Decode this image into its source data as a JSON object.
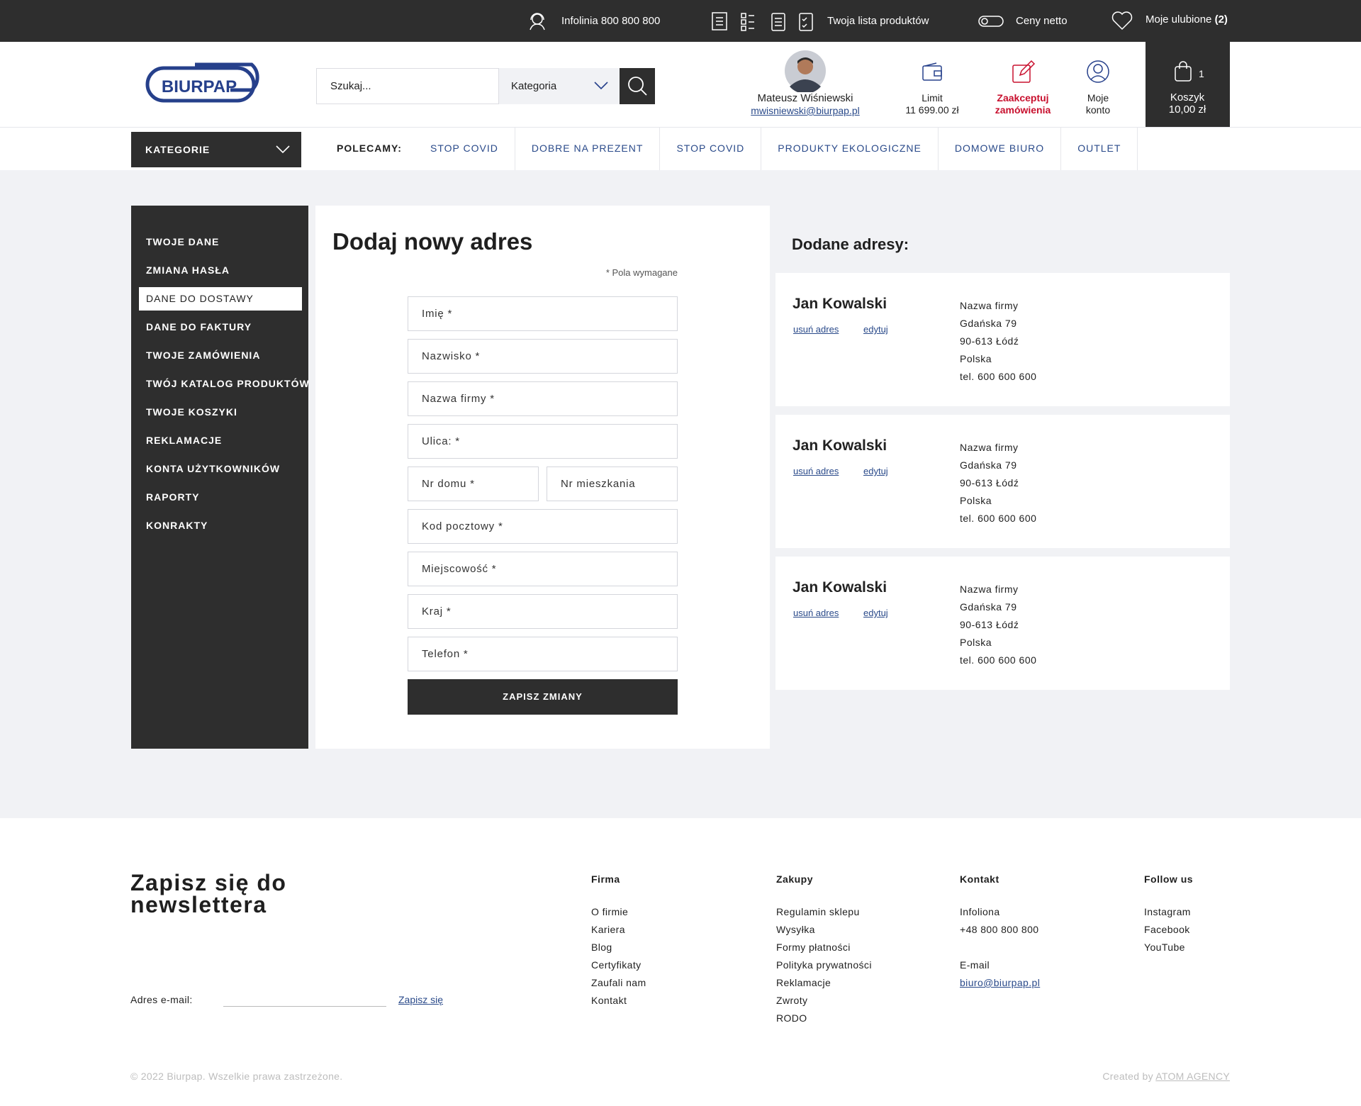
{
  "topbar": {
    "hotline": "Infolinia 800 800 800",
    "product_list": "Twoja lista produktów",
    "net_prices": "Ceny netto",
    "favorites": "Moje ulubione",
    "favorites_count": "(2)"
  },
  "header": {
    "logo": "BIURPAP",
    "search_placeholder": "Szukaj...",
    "category": "Kategoria",
    "user_name": "Mateusz Wiśniewski",
    "user_email": "mwisniewski@biurpap.pl",
    "limit_label": "Limit",
    "limit_value": "11 699.00 zł",
    "accept_orders": "Zaakceptuj zamówienia",
    "account": "Moje konto",
    "cart_count": "1",
    "cart_label": "Koszyk",
    "cart_total": "10,00 zł"
  },
  "nav": {
    "categories": "KATEGORIE",
    "recommended": "POLECAMY:",
    "links": [
      "STOP COVID",
      "DOBRE NA PREZENT",
      "STOP COVID",
      "PRODUKTY EKOLOGICZNE",
      "DOMOWE BIURO",
      "OUTLET"
    ]
  },
  "sidebar": {
    "items": [
      "TWOJE DANE",
      "ZMIANA HASŁA",
      "DANE DO DOSTAWY",
      "DANE DO FAKTURY",
      "TWOJE ZAMÓWIENIA",
      "TWÓJ KATALOG PRODUKTÓW",
      "TWOJE KOSZYKI",
      "REKLAMACJE",
      "KONTA UŻYTKOWNIKÓW",
      "RAPORTY",
      "KONRAKTY"
    ],
    "active": 2
  },
  "form": {
    "title": "Dodaj nowy adres",
    "required_note": "* Pola wymagane",
    "rows": [
      [
        "Imię *"
      ],
      [
        "Nazwisko *"
      ],
      [
        "Nazwa firmy *"
      ],
      [
        "Ulica: *"
      ],
      [
        "Nr domu *",
        "Nr mieszkania"
      ],
      [
        "Kod pocztowy *"
      ],
      [
        "Miejscowość *"
      ],
      [
        "Kraj *"
      ],
      [
        "Telefon  *"
      ]
    ],
    "submit": "ZAPISZ ZMIANY"
  },
  "addresses": {
    "title": "Dodane adresy:",
    "remove": "usuń adres",
    "edit": "edytuj",
    "items": [
      {
        "name": "Jan Kowalski",
        "lines": [
          "Nazwa firmy",
          "Gdańska 79",
          "90-613 Łódź",
          "Polska",
          "tel. 600 600 600"
        ]
      },
      {
        "name": "Jan Kowalski",
        "lines": [
          "Nazwa firmy",
          "Gdańska 79",
          "90-613 Łódź",
          "Polska",
          "tel. 600 600 600"
        ]
      },
      {
        "name": "Jan Kowalski",
        "lines": [
          "Nazwa firmy",
          "Gdańska 79",
          "90-613 Łódź",
          "Polska",
          "tel. 600 600 600"
        ]
      }
    ]
  },
  "footer": {
    "newsletter_title": "Zapisz się do newslettera",
    "email_label": "Adres e-mail:",
    "subscribe": "Zapisz się",
    "columns": [
      {
        "title": "Firma",
        "groups": [
          [
            "O firmie",
            "Kariera",
            "Blog",
            "Certyfikaty",
            "Zaufali nam",
            "Kontakt"
          ]
        ]
      },
      {
        "title": "Zakupy",
        "groups": [
          [
            "Regulamin sklepu",
            "Wysyłka",
            "Formy płatności",
            "Polityka prywatności",
            "Reklamacje",
            "Zwroty",
            "RODO"
          ]
        ]
      },
      {
        "title": "Kontakt",
        "groups": [
          [
            "Infoliona",
            "+48 800 800 800"
          ],
          [
            "E-mail",
            "biuro@biurpap.pl"
          ]
        ]
      },
      {
        "title": "Follow us",
        "groups": [
          [
            "Instagram",
            "Facebook",
            "YouTube"
          ]
        ]
      }
    ],
    "copyright": "© 2022 Biurpap. Wszelkie prawa zastrzeżone.",
    "created_by": "Created by",
    "agency": "ATOM AGENCY"
  }
}
